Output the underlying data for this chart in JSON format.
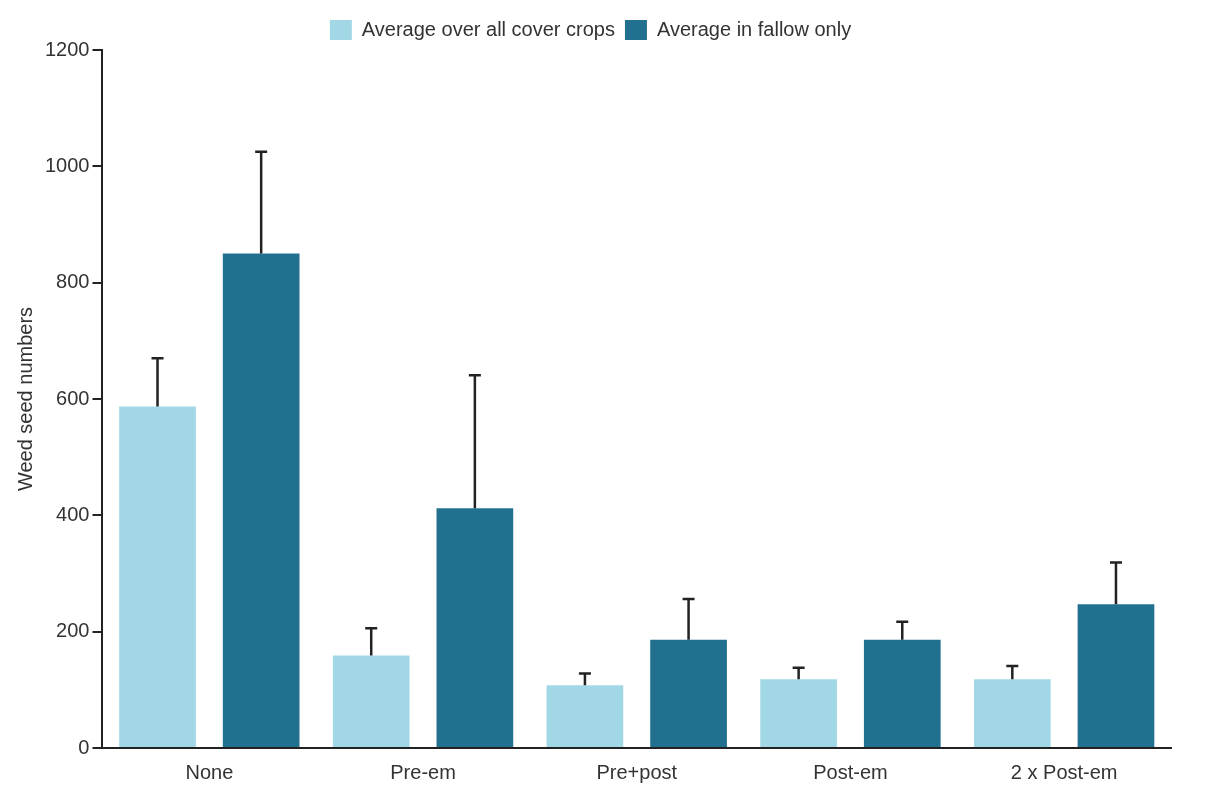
{
  "chart_data": {
    "type": "bar",
    "ylabel": "Weed seed numbers",
    "categories": [
      "None",
      "Pre-em",
      "Pre+post",
      "Post-em",
      "2 x Post-em"
    ],
    "series": [
      {
        "name": "Average over all cover crops",
        "color": "#a2d8e6",
        "values": [
          587,
          159,
          108,
          118,
          118
        ],
        "errors": [
          [
            587,
            670
          ],
          [
            159,
            206
          ],
          [
            108,
            128
          ],
          [
            118,
            138
          ],
          [
            118,
            141
          ]
        ]
      },
      {
        "name": "Average in fallow only",
        "color": "#21708f",
        "values": [
          850,
          412,
          186,
          186,
          247
        ],
        "errors": [
          [
            850,
            1025
          ],
          [
            412,
            641
          ],
          [
            186,
            256
          ],
          [
            186,
            217
          ],
          [
            247,
            319
          ]
        ]
      }
    ],
    "ylim": [
      0,
      1200
    ],
    "yticks": [
      0,
      200,
      400,
      600,
      800,
      1000,
      1200
    ],
    "grid": false,
    "legend": "top"
  }
}
